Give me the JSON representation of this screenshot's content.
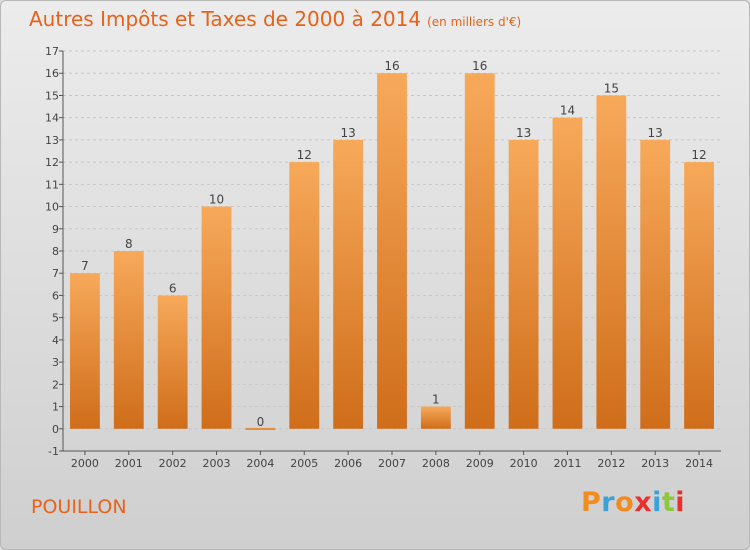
{
  "title": "Autres Impôts et Taxes de 2000 à 2014",
  "subtitle": "(en milliers d'€)",
  "commune": "POUILLON",
  "logo": {
    "letters": [
      "P",
      "r",
      "o",
      "x",
      "i",
      "t",
      "i"
    ],
    "colors": [
      "#f28c1e",
      "#3aa2d8",
      "#f28c1e",
      "#e8312f",
      "#3aa2d8",
      "#8dc63f",
      "#e8312f"
    ]
  },
  "colors": {
    "title": "#e8621a",
    "bar_light": "#f7a95a",
    "bar_dark": "#cf6d1a",
    "axis": "#555555",
    "grid": "#c8c8c8",
    "text": "#444444"
  },
  "chart_data": {
    "type": "bar",
    "categories": [
      "2000",
      "2001",
      "2002",
      "2003",
      "2004",
      "2005",
      "2006",
      "2007",
      "2008",
      "2009",
      "2010",
      "2011",
      "2012",
      "2013",
      "2014"
    ],
    "values": [
      7,
      8,
      6,
      10,
      0,
      12,
      13,
      16,
      1,
      16,
      13,
      14,
      15,
      13,
      12
    ],
    "value_labels": [
      "7",
      "8",
      "6",
      "10",
      "0",
      "12",
      "13",
      "16",
      "1",
      "16",
      "13",
      "14",
      "15",
      "13",
      "12"
    ],
    "yticks": [
      "-1",
      "0",
      "1",
      "2",
      "3",
      "4",
      "5",
      "6",
      "7",
      "8",
      "9",
      "10",
      "11",
      "12",
      "13",
      "14",
      "15",
      "16",
      "17"
    ],
    "ylim": [
      -1,
      17
    ],
    "title": "Autres Impôts et Taxes de 2000 à 2014",
    "xlabel": "",
    "ylabel": "",
    "grid": true
  }
}
